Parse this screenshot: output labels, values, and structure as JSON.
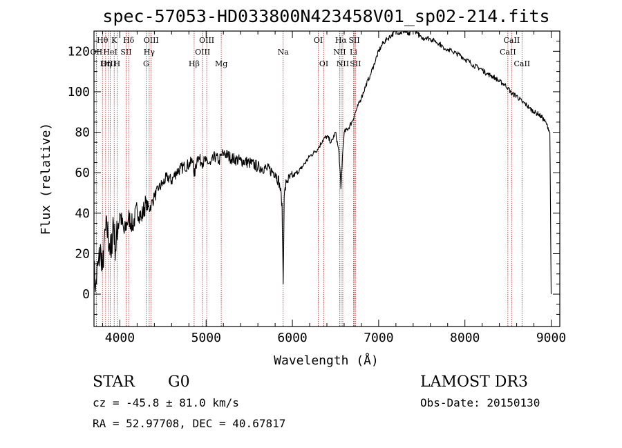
{
  "chart_data": {
    "type": "line",
    "title": "spec-57053-HD033800N423458V01_sp02-214.fits",
    "xlabel": "Wavelength (Å)",
    "ylabel": "Flux (relative)",
    "xlim": [
      3700,
      9100
    ],
    "ylim": [
      -16,
      130
    ],
    "x_ticks": [
      4000,
      5000,
      6000,
      7000,
      8000,
      9000
    ],
    "y_ticks": [
      0,
      20,
      40,
      60,
      80,
      100,
      120
    ],
    "spectrum_anchor_points": {
      "x": [
        3700,
        3720,
        3750,
        3780,
        3800,
        3820,
        3850,
        3880,
        3900,
        3920,
        3950,
        3980,
        4000,
        4050,
        4100,
        4150,
        4200,
        4250,
        4300,
        4340,
        4400,
        4450,
        4500,
        4550,
        4600,
        4650,
        4700,
        4750,
        4800,
        4850,
        4861,
        4900,
        4950,
        5000,
        5050,
        5100,
        5150,
        5200,
        5300,
        5400,
        5500,
        5600,
        5700,
        5800,
        5850,
        5880,
        5893,
        5905,
        5930,
        6000,
        6100,
        6200,
        6300,
        6350,
        6400,
        6450,
        6500,
        6540,
        6563,
        6580,
        6600,
        6650,
        6700,
        6750,
        6800,
        6850,
        6900,
        6950,
        7000,
        7050,
        7100,
        7150,
        7200,
        7250,
        7300,
        7350,
        7400,
        7450,
        7500,
        7550,
        7600,
        7650,
        7700,
        7750,
        7800,
        7850,
        7900,
        7950,
        8000,
        8050,
        8100,
        8150,
        8200,
        8250,
        8300,
        8350,
        8400,
        8450,
        8500,
        8542,
        8600,
        8662,
        8700,
        8750,
        8800,
        8850,
        8900,
        8950,
        8985,
        9000
      ],
      "y": [
        10,
        5,
        15,
        22,
        12,
        28,
        32,
        25,
        18,
        38,
        22,
        35,
        40,
        30,
        38,
        34,
        42,
        38,
        45,
        42,
        48,
        52,
        55,
        58,
        56,
        60,
        62,
        63,
        64,
        66,
        58,
        68,
        65,
        66,
        64,
        68,
        66,
        70,
        67,
        66,
        65,
        63,
        62,
        60,
        55,
        45,
        5,
        48,
        56,
        58,
        62,
        68,
        72,
        76,
        78,
        75,
        80,
        70,
        52,
        68,
        80,
        82,
        86,
        92,
        97,
        103,
        108,
        114,
        120,
        124,
        126,
        128,
        130,
        129,
        130,
        128,
        131,
        129,
        126,
        127,
        126,
        125,
        124,
        122,
        121,
        120,
        119,
        118,
        116,
        115,
        113,
        112,
        111,
        109,
        108,
        107,
        105,
        104,
        102,
        99,
        98,
        95,
        94,
        92,
        90,
        89,
        87,
        84,
        80,
        0
      ]
    },
    "emission_lines": [
      {
        "name": "Hθ",
        "wavelength": 3798,
        "row": 1
      },
      {
        "name": "OII",
        "wavelength": 3727,
        "row": 2
      },
      {
        "name": "OIII",
        "wavelength": 3869,
        "row": 3
      },
      {
        "name": "K",
        "wavelength": 3934,
        "row": 1
      },
      {
        "name": "HeI",
        "wavelength": 3889,
        "row": 2
      },
      {
        "name": "Hη",
        "wavelength": 3835,
        "row": 3
      },
      {
        "name": "H",
        "wavelength": 3968,
        "row": 3
      },
      {
        "name": "SII",
        "wavelength": 4072,
        "row": 2
      },
      {
        "name": "Hδ",
        "wavelength": 4102,
        "row": 1
      },
      {
        "name": "OIII",
        "wavelength": 4363,
        "row": 1
      },
      {
        "name": "Hγ",
        "wavelength": 4340,
        "row": 2
      },
      {
        "name": "G",
        "wavelength": 4304,
        "row": 3
      },
      {
        "name": "OIII",
        "wavelength": 5007,
        "row": 1
      },
      {
        "name": "OIII",
        "wavelength": 4959,
        "row": 2
      },
      {
        "name": "Hβ",
        "wavelength": 4861,
        "row": 3
      },
      {
        "name": "Mg",
        "wavelength": 5175,
        "row": 3
      },
      {
        "name": "Na",
        "wavelength": 5893,
        "row": 2
      },
      {
        "name": "OI",
        "wavelength": 6300,
        "row": 1
      },
      {
        "name": "OI",
        "wavelength": 6364,
        "row": 3
      },
      {
        "name": "Hα",
        "wavelength": 6563,
        "row": 1
      },
      {
        "name": "NII",
        "wavelength": 6548,
        "row": 2
      },
      {
        "name": "NII",
        "wavelength": 6584,
        "row": 3
      },
      {
        "name": "SII",
        "wavelength": 6717,
        "row": 1
      },
      {
        "name": "Li",
        "wavelength": 6708,
        "row": 2
      },
      {
        "name": "SII",
        "wavelength": 6731,
        "row": 3
      },
      {
        "name": "CaII",
        "wavelength": 8542,
        "row": 1
      },
      {
        "name": "CaII",
        "wavelength": 8498,
        "row": 2
      },
      {
        "name": "CaII",
        "wavelength": 8662,
        "row": 3
      }
    ]
  },
  "info": {
    "object_type": "STAR",
    "subclass": "G0",
    "survey": "LAMOST DR3",
    "redshift_text": "cz = -45.8 ± 81.0 km/s",
    "obs_date": "Obs-Date: 20150130",
    "coordinates": "RA =  52.97708, DEC =  40.67817"
  },
  "colors": {
    "spectrum": "#000000",
    "line_markers": "#b22222",
    "axes": "#000000"
  }
}
